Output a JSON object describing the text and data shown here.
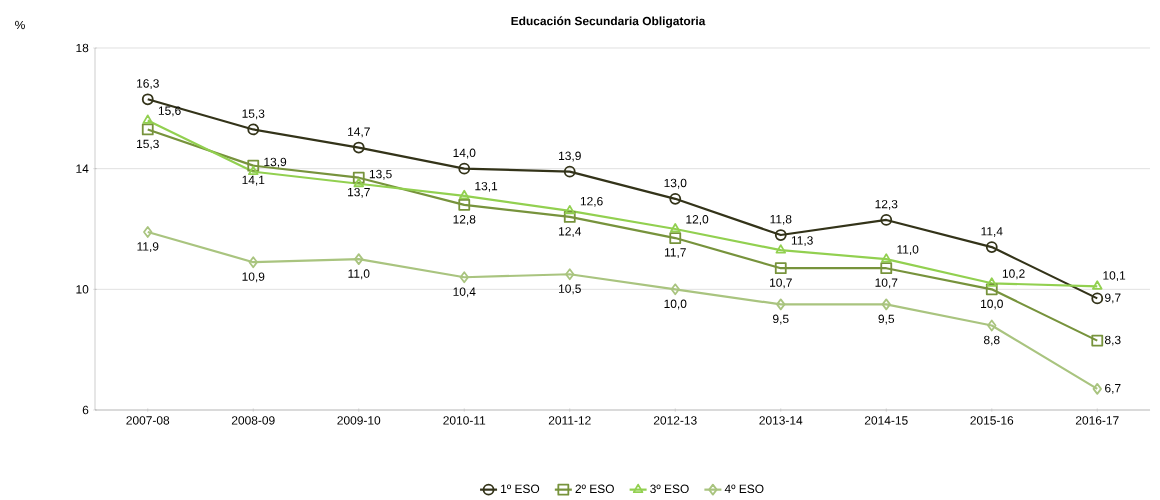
{
  "chart_data": {
    "type": "line",
    "title": "Educación Secundaria Obligatoria",
    "ylabel": "%",
    "categories": [
      "2007-08",
      "2008-09",
      "2009-10",
      "2010-11",
      "2011-12",
      "2012-13",
      "2013-14",
      "2014-15",
      "2015-16",
      "2016-17"
    ],
    "series": [
      {
        "name": "1º ESO",
        "color": "#333319",
        "marker": "circle",
        "values": [
          16.3,
          15.3,
          14.7,
          14.0,
          13.9,
          13.0,
          11.8,
          12.3,
          11.4,
          9.7
        ],
        "value_labels": [
          "16,3",
          "15,3",
          "14,7",
          "14,0",
          "13,9",
          "13,0",
          "11,8",
          "12,3",
          "11,4",
          "9,7"
        ]
      },
      {
        "name": "2º ESO",
        "color": "#77933c",
        "marker": "square",
        "values": [
          15.3,
          14.1,
          13.7,
          12.8,
          12.4,
          11.7,
          10.7,
          10.7,
          10.0,
          8.3
        ],
        "value_labels": [
          "15,3",
          "14,1",
          "13,7",
          "12,8",
          "12,4",
          "11,7",
          "10,7",
          "10,7",
          "10,0",
          "8,3"
        ]
      },
      {
        "name": "3º ESO",
        "color": "#92d050",
        "marker": "triangle",
        "values": [
          15.6,
          13.9,
          13.5,
          13.1,
          12.6,
          12.0,
          11.3,
          11.0,
          10.2,
          10.1
        ],
        "value_labels": [
          "15,6",
          "13,9",
          "13,5",
          "13,1",
          "12,6",
          "12,0",
          "11,3",
          "11,0",
          "10,2",
          "10,1"
        ]
      },
      {
        "name": "4º ESO",
        "color": "#a9c47f",
        "marker": "diamond",
        "values": [
          11.9,
          10.9,
          11.0,
          10.4,
          10.5,
          10.0,
          9.5,
          9.5,
          8.8,
          6.7
        ],
        "value_labels": [
          "11,9",
          "10,9",
          "11,0",
          "10,4",
          "10,5",
          "10,0",
          "9,5",
          "9,5",
          "8,8",
          "6,7"
        ]
      }
    ],
    "ylim": [
      6,
      18
    ],
    "yticks": [
      6,
      10,
      14,
      18
    ],
    "grid": "y",
    "legend": "bottom",
    "line_style": "solid"
  }
}
